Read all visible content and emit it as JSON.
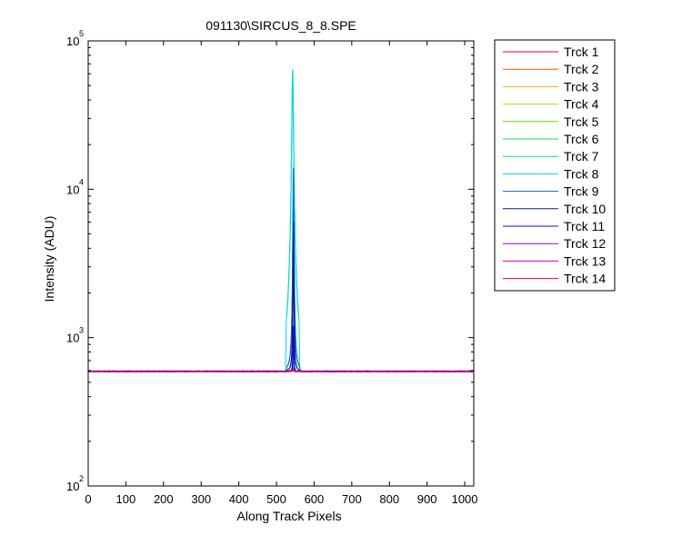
{
  "chart_data": {
    "type": "line",
    "title": "091130\\SIRCUS_8_8.SPE",
    "xlabel": "Along Track Pixels",
    "ylabel": "Intensity (ADU)",
    "xlim": [
      0,
      1024
    ],
    "ylim": [
      100,
      100000
    ],
    "y_scale": "log",
    "grid": false,
    "legend_position": "outside-right",
    "x_ticks": [
      0,
      100,
      200,
      300,
      400,
      500,
      600,
      700,
      800,
      900,
      1000
    ],
    "y_ticks": [
      {
        "base": "10",
        "exp": "2",
        "value": 100
      },
      {
        "base": "10",
        "exp": "3",
        "value": 1000
      },
      {
        "base": "10",
        "exp": "4",
        "value": 10000
      },
      {
        "base": "10",
        "exp": "5",
        "value": 100000
      }
    ],
    "series": [
      {
        "name": "Trck 1",
        "color": "#e6002e",
        "baseline": 590,
        "peak": {
          "x": 543,
          "value": 600,
          "width": 1.5
        }
      },
      {
        "name": "Trck 2",
        "color": "#ef5a00",
        "baseline": 590,
        "peak": {
          "x": 543,
          "value": 600,
          "width": 1.5
        }
      },
      {
        "name": "Trck 3",
        "color": "#e8b400",
        "baseline": 590,
        "peak": {
          "x": 543,
          "value": 600,
          "width": 1.5
        }
      },
      {
        "name": "Trck 4",
        "color": "#c8d400",
        "baseline": 590,
        "peak": {
          "x": 543,
          "value": 600,
          "width": 1.5
        }
      },
      {
        "name": "Trck 5",
        "color": "#6fd400",
        "baseline": 590,
        "peak": {
          "x": 543,
          "value": 600,
          "width": 1.5
        }
      },
      {
        "name": "Trck 6",
        "color": "#1ed45a",
        "baseline": 590,
        "peak": {
          "x": 543,
          "value": 600,
          "width": 1.5
        }
      },
      {
        "name": "Trck 7",
        "color": "#12d49e",
        "baseline": 590,
        "peak": {
          "x": 543,
          "value": 700,
          "width": 1.5
        }
      },
      {
        "name": "Trck 8",
        "color": "#00d8e0",
        "baseline": 595,
        "peak": {
          "x": 543,
          "value": 64000,
          "width": 1.8
        }
      },
      {
        "name": "Trck 9",
        "color": "#0068d4",
        "baseline": 590,
        "peak": {
          "x": 545,
          "value": 14000,
          "width": 1.0
        }
      },
      {
        "name": "Trck 10",
        "color": "#001a8c",
        "baseline": 590,
        "peak": {
          "x": 545,
          "value": 6000,
          "width": 0.8
        }
      },
      {
        "name": "Trck 11",
        "color": "#2a00d4",
        "baseline": 590,
        "peak": {
          "x": 545,
          "value": 1200,
          "width": 0.8
        }
      },
      {
        "name": "Trck 12",
        "color": "#a000c8",
        "baseline": 592,
        "peak": {
          "x": 545,
          "value": 620,
          "width": 1.0
        }
      },
      {
        "name": "Trck 13",
        "color": "#e000b4",
        "baseline": 594,
        "peak": {
          "x": 545,
          "value": 610,
          "width": 1.0
        }
      },
      {
        "name": "Trck 14",
        "color": "#e0006a",
        "baseline": 596,
        "peak": {
          "x": 545,
          "value": 610,
          "width": 1.0
        }
      }
    ]
  }
}
